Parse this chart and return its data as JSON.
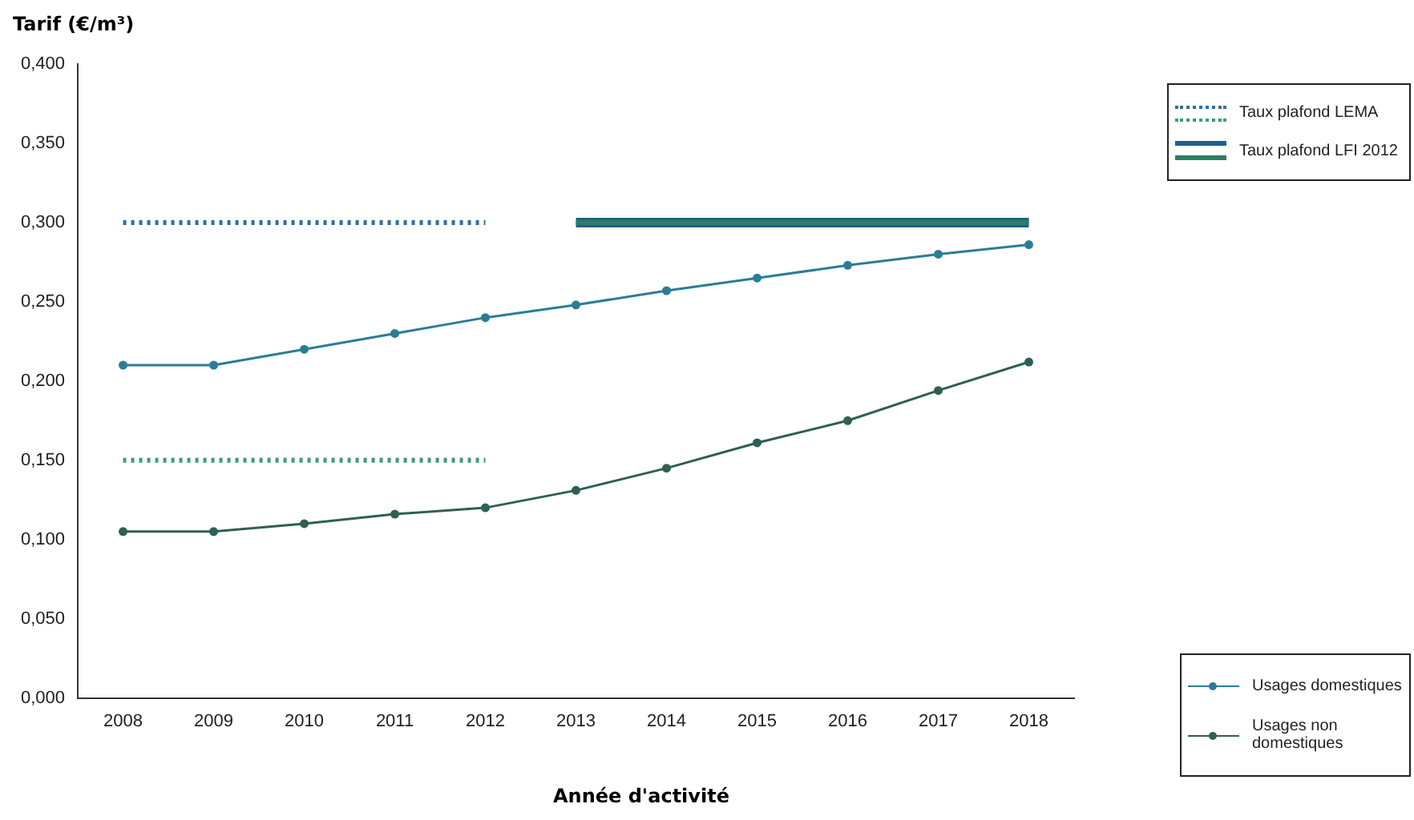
{
  "chart_data": {
    "type": "line",
    "ylabel": "Tarif (€/m³)",
    "xlabel": "Année d'activité",
    "categories": [
      "2008",
      "2009",
      "2010",
      "2011",
      "2012",
      "2013",
      "2014",
      "2015",
      "2016",
      "2017",
      "2018"
    ],
    "ylim": [
      0,
      0.4
    ],
    "yticks": [
      {
        "value": 0,
        "label": "0,000"
      },
      {
        "value": 0.05,
        "label": "0,050"
      },
      {
        "value": 0.1,
        "label": "0,100"
      },
      {
        "value": 0.15,
        "label": "0,150"
      },
      {
        "value": 0.2,
        "label": "0,200"
      },
      {
        "value": 0.25,
        "label": "0,250"
      },
      {
        "value": 0.3,
        "label": "0,300"
      },
      {
        "value": 0.35,
        "label": "0,350"
      },
      {
        "value": 0.4,
        "label": "0,400"
      }
    ],
    "grid": false,
    "legend": "right",
    "series": [
      {
        "name": "Taux plafond LEMA",
        "color": "#2f6fa0",
        "line_style": "dotted",
        "marker": "none",
        "values": [
          0.3,
          0.3,
          0.3,
          0.3,
          0.3,
          null,
          null,
          null,
          null,
          null,
          null
        ]
      },
      {
        "color": "#3a9a80",
        "line_style": "dotted",
        "marker": "none",
        "values": [
          0.15,
          0.15,
          0.15,
          0.15,
          0.15,
          null,
          null,
          null,
          null,
          null,
          null
        ]
      },
      {
        "name": "Taux plafond LFI 2012",
        "color": "#1f5f8f",
        "line_style": "solid",
        "marker": "none",
        "values": [
          null,
          null,
          null,
          null,
          null,
          0.3,
          0.3,
          0.3,
          0.3,
          0.3,
          0.3
        ]
      },
      {
        "color": "#2e7d62",
        "line_style": "solid",
        "marker": "none",
        "values": [
          null,
          null,
          null,
          null,
          null,
          0.3,
          0.3,
          0.3,
          0.3,
          0.3,
          0.3
        ]
      },
      {
        "name": "Usages domestiques",
        "color": "#2a7d96",
        "line_style": "solid",
        "marker": "circle",
        "values": [
          0.21,
          0.21,
          0.22,
          0.23,
          0.24,
          0.248,
          0.257,
          0.265,
          0.273,
          0.28,
          0.286
        ]
      },
      {
        "name": "Usages non domestiques",
        "color": "#2f5f55",
        "line_style": "solid",
        "marker": "circle",
        "values": [
          0.105,
          0.105,
          0.11,
          0.116,
          0.12,
          0.131,
          0.145,
          0.161,
          0.175,
          0.194,
          0.212
        ]
      }
    ]
  }
}
